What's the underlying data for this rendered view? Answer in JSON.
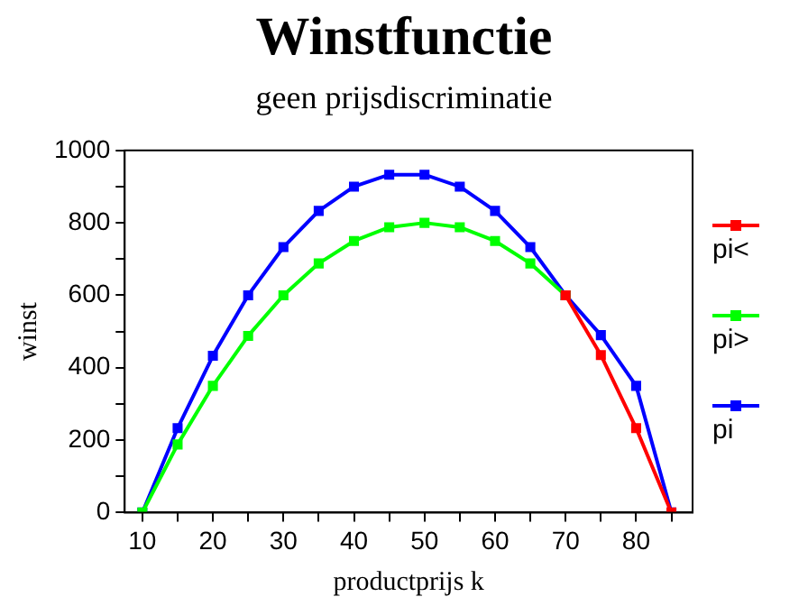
{
  "chart_data": {
    "type": "line",
    "title": "Winstfunctie",
    "subtitle": "geen prijsdiscriminatie",
    "xlabel": "productprijs k",
    "ylabel": "winst",
    "x": [
      10,
      15,
      20,
      25,
      30,
      35,
      40,
      45,
      50,
      55,
      60,
      65,
      70,
      75,
      80,
      85
    ],
    "xlim": [
      7.5,
      88
    ],
    "xticks": [
      10,
      {
        "value": 15,
        "label": null
      },
      20,
      {
        "value": 25,
        "label": null
      },
      30,
      {
        "value": 35,
        "label": null
      },
      40,
      {
        "value": 45,
        "label": null
      },
      50,
      {
        "value": 55,
        "label": null
      },
      60,
      {
        "value": 65,
        "label": null
      },
      70,
      {
        "value": 75,
        "label": null
      },
      80,
      {
        "value": 85,
        "label": null
      }
    ],
    "ylim": [
      0,
      1000
    ],
    "yticks": [
      0,
      {
        "value": 100,
        "label": null
      },
      200,
      {
        "value": 300,
        "label": null
      },
      400,
      {
        "value": 500,
        "label": null
      },
      600,
      {
        "value": 700,
        "label": null
      },
      800,
      {
        "value": 900,
        "label": null
      },
      1000
    ],
    "series": [
      {
        "name": "pi<",
        "color": "#ff0000",
        "values": [
          null,
          null,
          null,
          null,
          null,
          null,
          null,
          null,
          null,
          null,
          null,
          null,
          600,
          435,
          233,
          0
        ]
      },
      {
        "name": "pi>",
        "color": "#00ff00",
        "values": [
          0,
          188,
          350,
          488,
          600,
          688,
          750,
          788,
          800,
          788,
          750,
          688,
          600,
          null,
          null,
          null
        ]
      },
      {
        "name": "pi",
        "color": "#0000ff",
        "values": [
          0,
          233,
          433,
          600,
          733,
          833,
          900,
          933,
          933,
          900,
          833,
          733,
          600,
          490,
          350,
          0
        ]
      }
    ],
    "marker": "square",
    "line_style": "solid",
    "grid": false,
    "legend": "right"
  }
}
